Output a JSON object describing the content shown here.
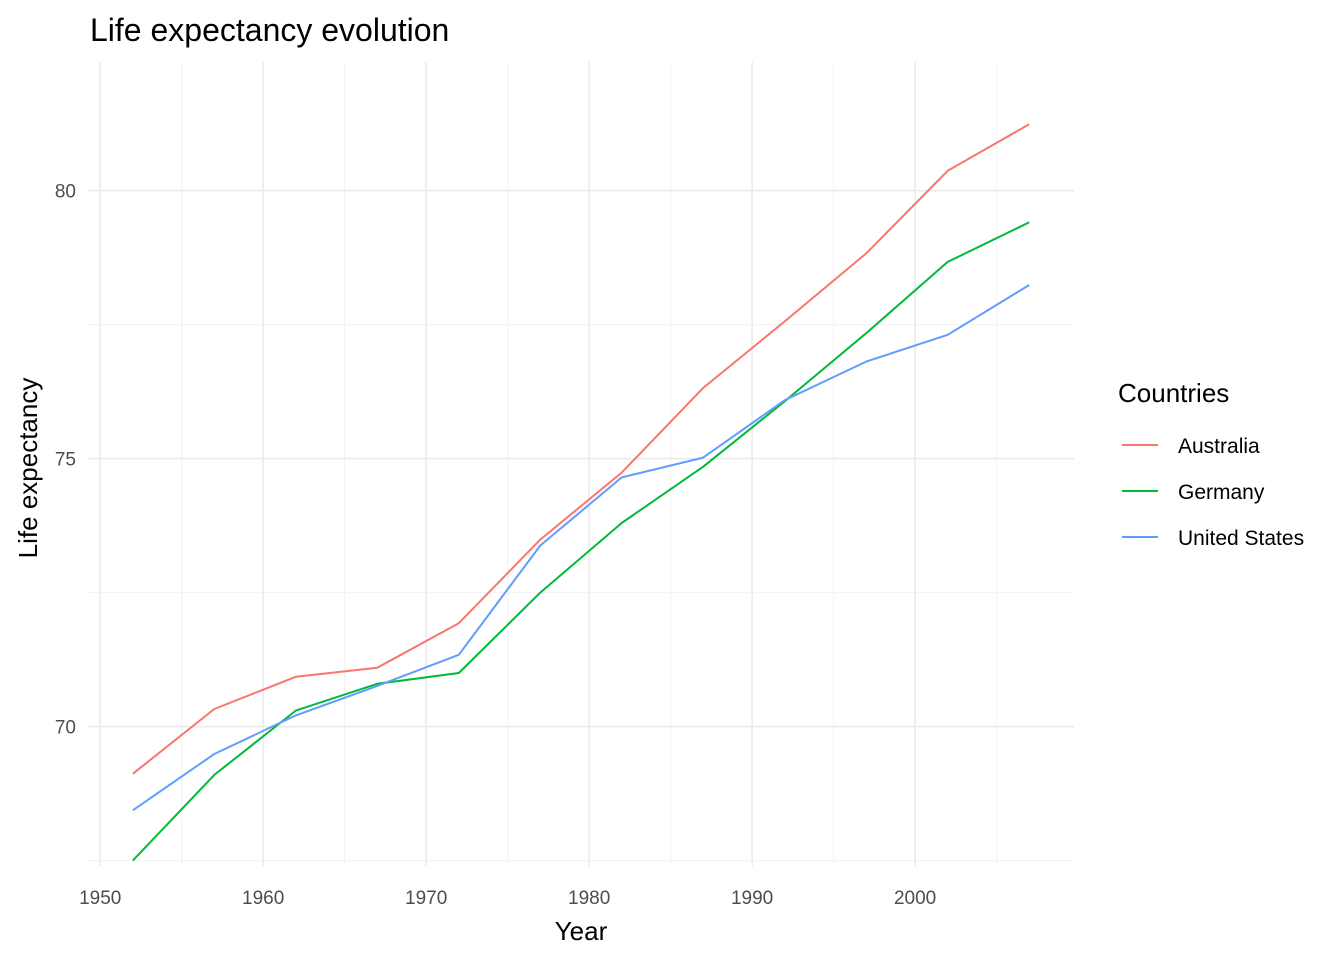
{
  "chart_data": {
    "type": "line",
    "title": "Life expectancy evolution",
    "xlabel": "Year",
    "ylabel": "Life expectancy",
    "xlim": [
      1949.25,
      2009.75
    ],
    "ylim": [
      67.4,
      82.4
    ],
    "x_ticks": [
      1950,
      1960,
      1970,
      1980,
      1990,
      2000
    ],
    "x_minor_ticks": [
      1955,
      1965,
      1975,
      1985,
      1995,
      2005
    ],
    "y_ticks": [
      70,
      75,
      80
    ],
    "y_minor_ticks": [
      67.5,
      72.5,
      77.5
    ],
    "grid": true,
    "legend": {
      "title": "Countries",
      "position": "right"
    },
    "x": [
      1952,
      1957,
      1962,
      1967,
      1972,
      1977,
      1982,
      1987,
      1992,
      1997,
      2002,
      2007
    ],
    "series": [
      {
        "name": "Australia",
        "color": "#F8766D",
        "values": [
          69.12,
          70.33,
          70.93,
          71.1,
          71.93,
          73.49,
          74.74,
          76.32,
          77.56,
          78.83,
          80.37,
          81.24
        ]
      },
      {
        "name": "Germany",
        "color": "#00BA38",
        "values": [
          67.5,
          69.1,
          70.3,
          70.8,
          71.0,
          72.5,
          73.8,
          74.85,
          76.07,
          77.34,
          78.67,
          79.41
        ]
      },
      {
        "name": "United States",
        "color": "#619CFF",
        "values": [
          68.44,
          69.49,
          70.21,
          70.76,
          71.34,
          73.38,
          74.65,
          75.02,
          76.09,
          76.81,
          77.31,
          78.24
        ]
      }
    ]
  }
}
